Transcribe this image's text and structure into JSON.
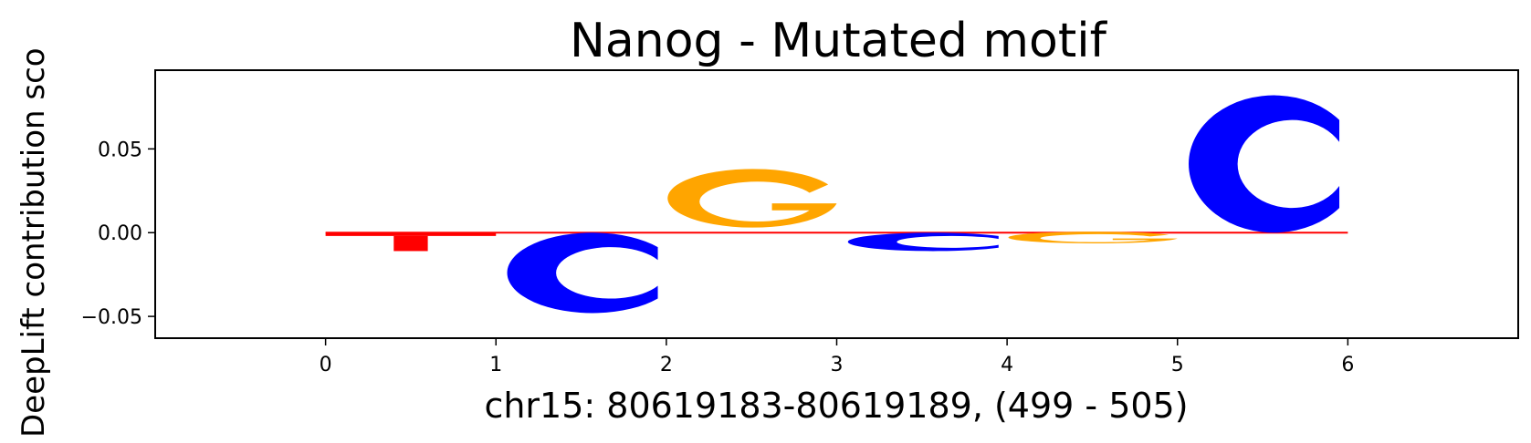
{
  "chart_data": {
    "type": "sequence_logo",
    "title": "Nanog - Mutated motif",
    "xlabel": "chr15: 80619183-80619189, (499 - 505)",
    "ylabel": "DeepLift contribution sco",
    "xlim": [
      -1,
      7
    ],
    "ylim": [
      -0.063,
      0.097
    ],
    "xticks": [
      0,
      1,
      2,
      3,
      4,
      5,
      6
    ],
    "yticks": [
      {
        "value": 0.05,
        "label": "0.05"
      },
      {
        "value": 0.0,
        "label": "0.00"
      },
      {
        "value": -0.05,
        "label": "−0.05"
      }
    ],
    "colors": {
      "T": "#ff0000",
      "C": "#0000ff",
      "G": "#ffa500",
      "A": "#008000"
    },
    "positions": [
      {
        "x": 0,
        "letter": "T",
        "value": -0.011
      },
      {
        "x": 1,
        "letter": "C",
        "value": -0.048
      },
      {
        "x": 2,
        "letter": "G",
        "value": 0.035
      },
      {
        "x": 3,
        "letter": "C",
        "value": -0.011
      },
      {
        "x": 4,
        "letter": "G",
        "value": -0.007
      },
      {
        "x": 5,
        "letter": "C",
        "value": 0.082
      }
    ]
  }
}
